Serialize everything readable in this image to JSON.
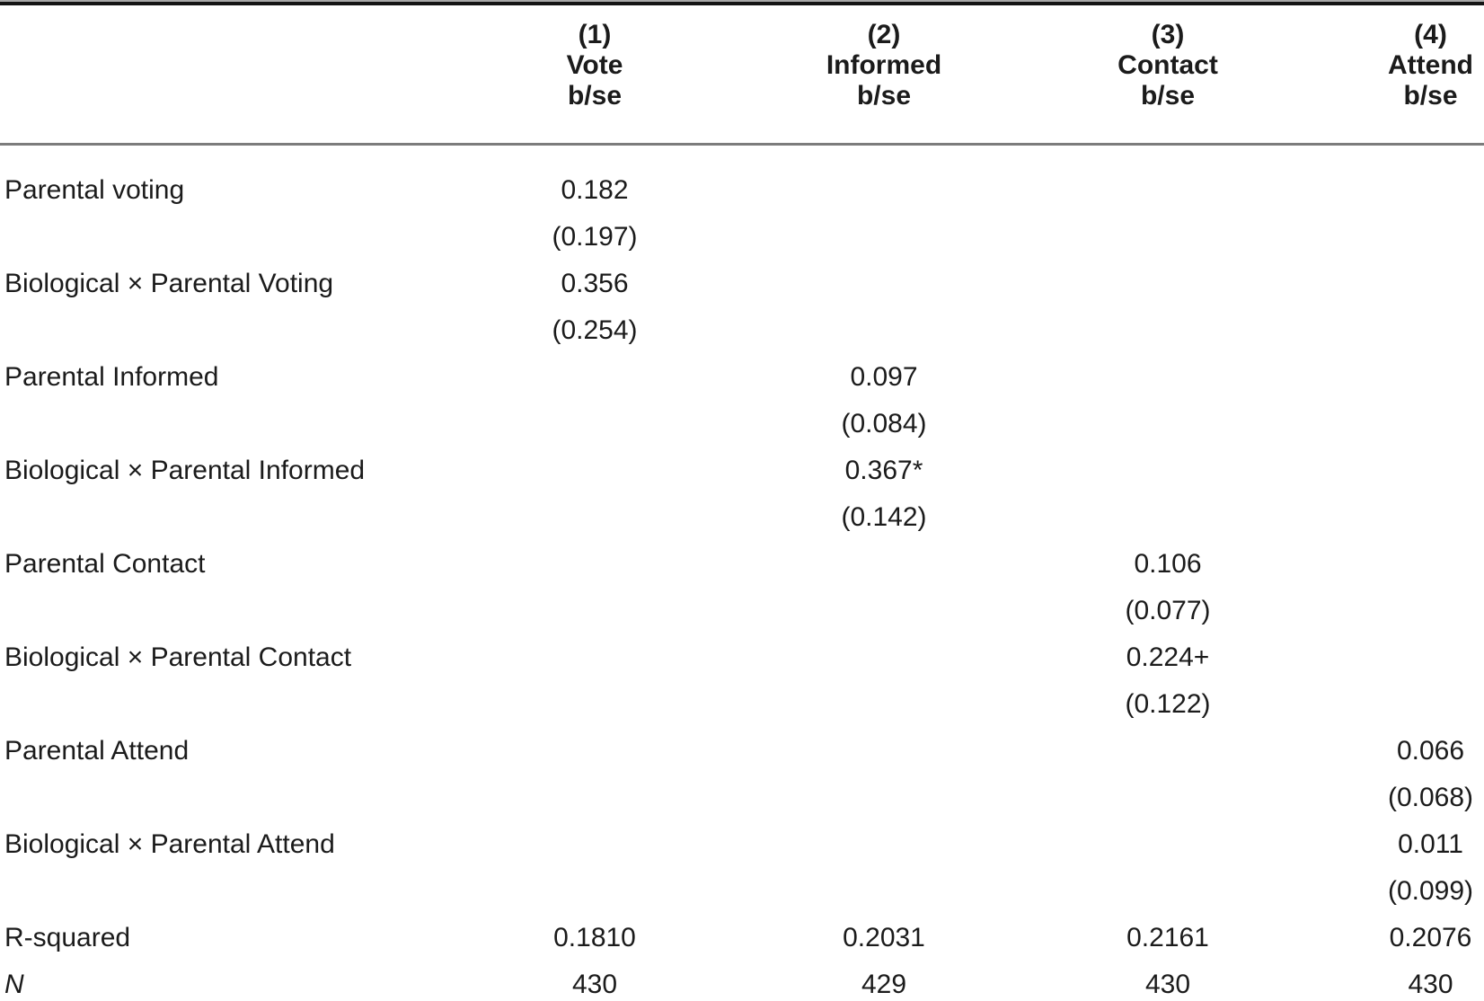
{
  "colors": {
    "rule_dark": "#141414",
    "rule_gray": "#7c7c7c",
    "text": "#1b1b1b"
  },
  "table": {
    "column_headers": [
      {
        "number": "(1)",
        "outcome": "Vote",
        "stat": "b/se"
      },
      {
        "number": "(2)",
        "outcome": "Informed",
        "stat": "b/se"
      },
      {
        "number": "(3)",
        "outcome": "Contact",
        "stat": "b/se"
      },
      {
        "number": "(4)",
        "outcome": "Attend",
        "stat": "b/se"
      }
    ],
    "coefficient_rows": [
      {
        "label": "Parental voting",
        "estimates": [
          "0.182",
          "",
          "",
          ""
        ],
        "std_errors": [
          "(0.197)",
          "",
          "",
          ""
        ]
      },
      {
        "label": "Biological × Parental Voting",
        "estimates": [
          "0.356",
          "",
          "",
          ""
        ],
        "std_errors": [
          "(0.254)",
          "",
          "",
          ""
        ]
      },
      {
        "label": "Parental Informed",
        "estimates": [
          "",
          "0.097",
          "",
          ""
        ],
        "std_errors": [
          "",
          "(0.084)",
          "",
          ""
        ]
      },
      {
        "label": "Biological × Parental Informed",
        "estimates": [
          "",
          "0.367*",
          "",
          ""
        ],
        "std_errors": [
          "",
          "(0.142)",
          "",
          ""
        ]
      },
      {
        "label": "Parental Contact",
        "estimates": [
          "",
          "",
          "0.106",
          ""
        ],
        "std_errors": [
          "",
          "",
          "(0.077)",
          ""
        ]
      },
      {
        "label": "Biological × Parental Contact",
        "estimates": [
          "",
          "",
          "0.224+",
          ""
        ],
        "std_errors": [
          "",
          "",
          "(0.122)",
          ""
        ]
      },
      {
        "label": "Parental Attend",
        "estimates": [
          "",
          "",
          "",
          "0.066"
        ],
        "std_errors": [
          "",
          "",
          "",
          "(0.068)"
        ]
      },
      {
        "label": "Biological × Parental Attend",
        "estimates": [
          "",
          "",
          "",
          "0.011"
        ],
        "std_errors": [
          "",
          "",
          "",
          "(0.099)"
        ]
      }
    ],
    "summary_rows": [
      {
        "label": "R-squared",
        "values": [
          "0.1810",
          "0.2031",
          "0.2161",
          "0.2076"
        ]
      },
      {
        "label": "N",
        "values": [
          "430",
          "429",
          "430",
          "430"
        ]
      }
    ]
  }
}
